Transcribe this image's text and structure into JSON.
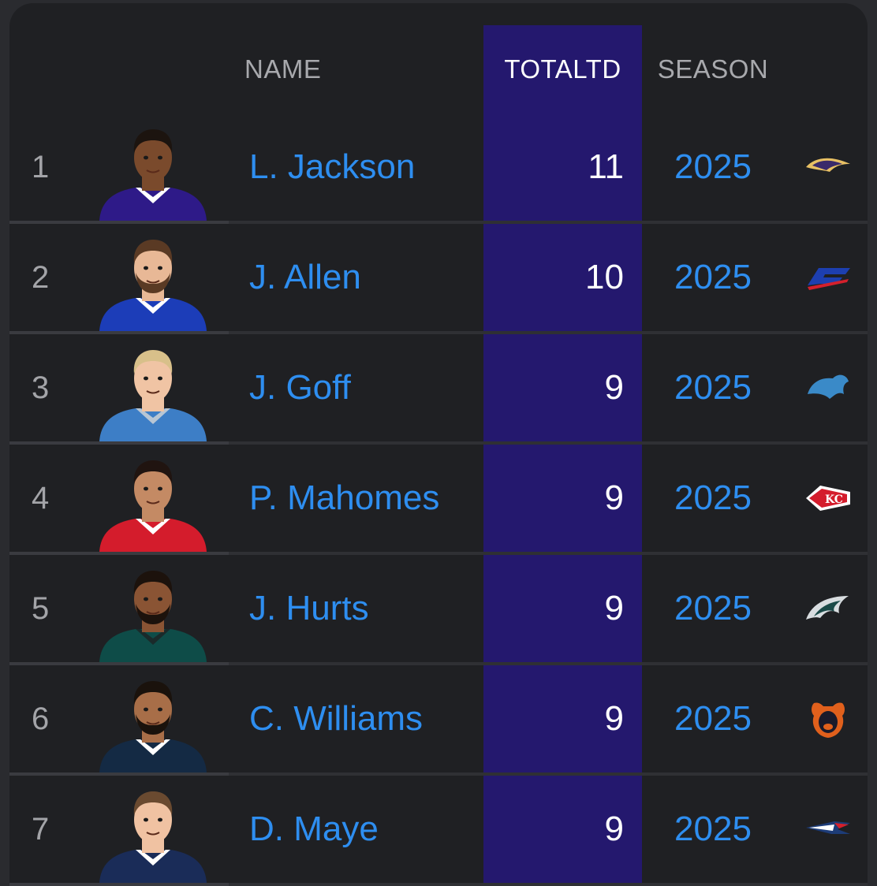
{
  "header": {
    "name_label": "NAME",
    "total_label": "TOTALTD",
    "season_label": "SEASON"
  },
  "colors": {
    "accent_blue": "#2e8ef0",
    "highlight_column": "#24186e",
    "background": "#1f2023"
  },
  "rows": [
    {
      "rank": "1",
      "name": "L. Jackson",
      "total_td": "11",
      "season": "2025",
      "team_icon": "ravens-logo-icon",
      "skin": "#7a4a2c",
      "hair": "#1c140f",
      "jersey": "#2e1a88",
      "collar": "#ffffff",
      "beard": false
    },
    {
      "rank": "2",
      "name": "J. Allen",
      "total_td": "10",
      "season": "2025",
      "team_icon": "bills-logo-icon",
      "skin": "#e8b896",
      "hair": "#5a3a24",
      "jersey": "#1c3db8",
      "collar": "#ffffff",
      "beard": true
    },
    {
      "rank": "3",
      "name": "J. Goff",
      "total_td": "9",
      "season": "2025",
      "team_icon": "lions-logo-icon",
      "skin": "#f0c4a4",
      "hair": "#d8c08a",
      "jersey": "#3d7ec6",
      "collar": "#b8c6d4",
      "beard": false
    },
    {
      "rank": "4",
      "name": "P. Mahomes",
      "total_td": "9",
      "season": "2025",
      "team_icon": "chiefs-logo-icon",
      "skin": "#c48a64",
      "hair": "#201410",
      "jersey": "#d41c2c",
      "collar": "#ffffff",
      "beard": false
    },
    {
      "rank": "5",
      "name": "J. Hurts",
      "total_td": "9",
      "season": "2025",
      "team_icon": "eagles-logo-icon",
      "skin": "#8a5434",
      "hair": "#1c120c",
      "jersey": "#0e4c48",
      "collar": "#1a2a2a",
      "beard": true
    },
    {
      "rank": "6",
      "name": "C. Williams",
      "total_td": "9",
      "season": "2025",
      "team_icon": "bears-logo-icon",
      "skin": "#a86e48",
      "hair": "#1a120c",
      "jersey": "#142a44",
      "collar": "#ffffff",
      "beard": true
    },
    {
      "rank": "7",
      "name": "D. Maye",
      "total_td": "9",
      "season": "2025",
      "team_icon": "patriots-logo-icon",
      "skin": "#f0c2a2",
      "hair": "#6a4a30",
      "jersey": "#1a2c58",
      "collar": "#ffffff",
      "beard": false
    }
  ]
}
